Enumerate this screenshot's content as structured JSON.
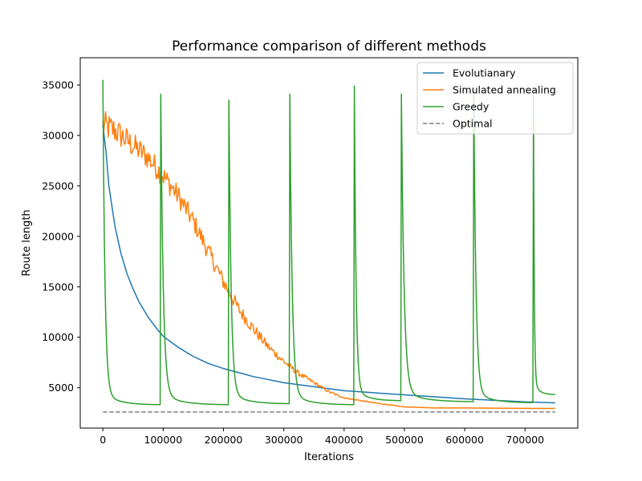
{
  "chart_data": {
    "type": "line",
    "title": "Performance comparison of different methods",
    "xlabel": "Iterations",
    "ylabel": "Route length",
    "xlim": [
      -37500,
      787500
    ],
    "ylim": [
      1000,
      37700
    ],
    "xticks": [
      0,
      100000,
      200000,
      300000,
      400000,
      500000,
      600000,
      700000
    ],
    "yticks": [
      5000,
      10000,
      15000,
      20000,
      25000,
      30000,
      35000
    ],
    "grid": false,
    "legend_position": "top-right",
    "series": [
      {
        "name": "Evolutionary",
        "legend_label": "Evolutianary",
        "color": "#1f77b4",
        "style": "solid",
        "x": [
          0,
          5000,
          10000,
          15000,
          20000,
          30000,
          40000,
          50000,
          60000,
          75000,
          90000,
          100000,
          125000,
          150000,
          175000,
          200000,
          250000,
          300000,
          350000,
          400000,
          450000,
          500000,
          550000,
          600000,
          650000,
          700000,
          750000
        ],
        "y": [
          31000,
          28500,
          25000,
          23000,
          21000,
          18300,
          16300,
          14800,
          13500,
          12000,
          10800,
          10100,
          9000,
          8100,
          7400,
          6900,
          6100,
          5500,
          5100,
          4700,
          4500,
          4300,
          4100,
          3900,
          3750,
          3600,
          3500
        ]
      },
      {
        "name": "Simulated annealing",
        "legend_label": "Simulated annealing",
        "color": "#ff7f0e",
        "style": "solid",
        "x": [
          0,
          20000,
          50000,
          75000,
          100000,
          125000,
          150000,
          175000,
          200000,
          225000,
          250000,
          275000,
          300000,
          325000,
          350000,
          375000,
          400000,
          450000,
          500000,
          550000,
          600000,
          700000,
          750000
        ],
        "y": [
          31000,
          30500,
          29000,
          27800,
          26000,
          24000,
          21500,
          18500,
          15500,
          12800,
          10800,
          9000,
          7600,
          6400,
          5500,
          4600,
          4000,
          3500,
          3100,
          3000,
          3000,
          2950,
          2950
        ],
        "noise_amplitude": [
          3000,
          2800,
          2600,
          2400,
          2300,
          2200,
          2000,
          1800,
          1600,
          1400,
          1200,
          900,
          700,
          500,
          350,
          250,
          150,
          80,
          40,
          20,
          10,
          10,
          10
        ]
      },
      {
        "name": "Greedy",
        "legend_label": "Greedy",
        "color": "#2ca02c",
        "style": "solid",
        "restarts": [
          {
            "start": 0,
            "end": 95000,
            "peak": 35500,
            "floor": 3300
          },
          {
            "start": 96000,
            "end": 208000,
            "peak": 34100,
            "floor": 3300
          },
          {
            "start": 209000,
            "end": 309000,
            "peak": 33500,
            "floor": 3400
          },
          {
            "start": 310000,
            "end": 416000,
            "peak": 34100,
            "floor": 3300
          },
          {
            "start": 417000,
            "end": 494000,
            "peak": 34900,
            "floor": 3700
          },
          {
            "start": 495000,
            "end": 614000,
            "peak": 34100,
            "floor": 3600
          },
          {
            "start": 615000,
            "end": 713000,
            "peak": 34700,
            "floor": 3500
          },
          {
            "start": 714000,
            "end": 750000,
            "peak": 34100,
            "floor": 4300
          }
        ]
      },
      {
        "name": "Optimal",
        "legend_label": "Optimal",
        "color": "#808080",
        "style": "dashed",
        "x": [
          0,
          750000
        ],
        "y": [
          2600,
          2600
        ]
      }
    ]
  }
}
